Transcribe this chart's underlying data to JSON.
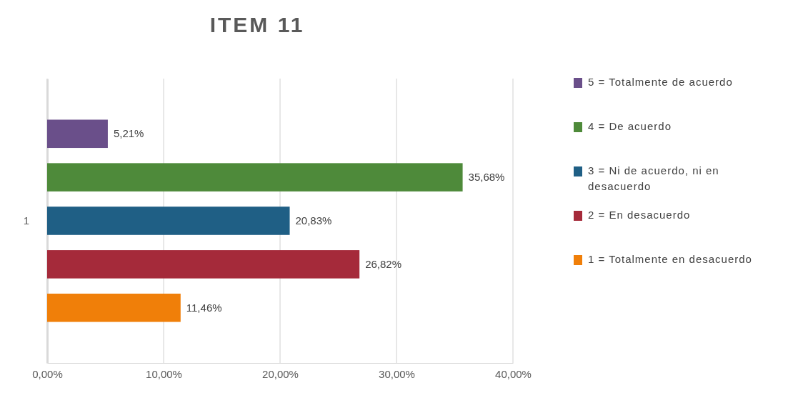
{
  "chart_data": {
    "type": "bar",
    "title": "ITEM 11",
    "orientation": "horizontal",
    "categories": [
      "1"
    ],
    "series": [
      {
        "name": "5 = Totalmente de acuerdo",
        "color": "#6a4f8a",
        "values": [
          5.21
        ],
        "value_labels": [
          "5,21%"
        ]
      },
      {
        "name": "4 = De acuerdo",
        "color": "#4e8a3a",
        "values": [
          35.68
        ],
        "value_labels": [
          "35,68%"
        ]
      },
      {
        "name": "3 = Ni de acuerdo, ni en desacuerdo",
        "color": "#1f5f85",
        "values": [
          20.83
        ],
        "value_labels": [
          "20,83%"
        ]
      },
      {
        "name": "2 = En desacuerdo",
        "color": "#a52a3a",
        "values": [
          26.82
        ],
        "value_labels": [
          "26,82%"
        ]
      },
      {
        "name": "1 = Totalmente en desacuerdo",
        "color": "#f07f09",
        "values": [
          11.46
        ],
        "value_labels": [
          "11,46%"
        ]
      }
    ],
    "xlim": [
      0,
      40
    ],
    "xticks": [
      {
        "value": 0,
        "label": "0,00%"
      },
      {
        "value": 10,
        "label": "10,00%"
      },
      {
        "value": 20,
        "label": "20,00%"
      },
      {
        "value": 30,
        "label": "30,00%"
      },
      {
        "value": 40,
        "label": "40,00%"
      }
    ],
    "grid": "x",
    "legend": "right"
  }
}
